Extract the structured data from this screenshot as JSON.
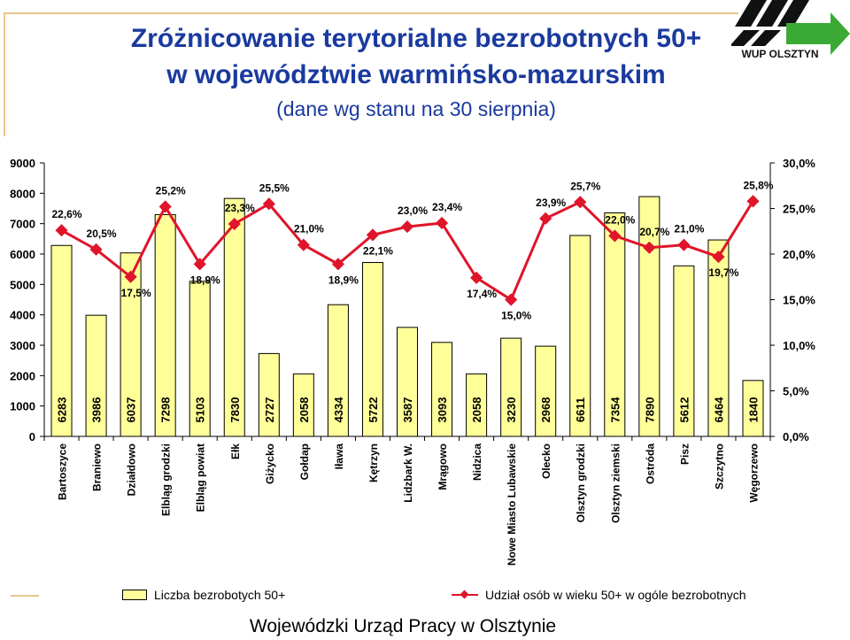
{
  "header": {
    "title_line1": "Zróżnicowanie terytorialne bezrobotnych 50+",
    "title_line2": "w województwie warmińsko-mazurskim",
    "subtitle": "(dane wg stanu na 30 sierpnia)"
  },
  "logo": {
    "text": "WUP OLSZTYN",
    "arrow_color": "#3aaa35"
  },
  "chart_data": {
    "type": "bar",
    "categories": [
      "Bartoszyce",
      "Braniewo",
      "Działdowo",
      "Elbląg grodzki",
      "Elbląg powiat",
      "Ełk",
      "Giżycko",
      "Gołdap",
      "Iława",
      "Kętrzyn",
      "Lidzbark W.",
      "Mrągowo",
      "Nidzica",
      "Nowe Miasto Lubawskie",
      "Olecko",
      "Olsztyn grodzki",
      "Olsztyn ziemski",
      "Ostróda",
      "Pisz",
      "Szczytno",
      "Węgorzewo"
    ],
    "series": [
      {
        "name": "Liczba bezrobotych 50+",
        "type": "bar",
        "axis": "left",
        "color": "#ffff99",
        "values": [
          6283,
          3986,
          6037,
          7298,
          5103,
          7830,
          2727,
          2058,
          4334,
          5722,
          3587,
          3093,
          2058,
          3230,
          2968,
          6611,
          7354,
          7890,
          5612,
          6464,
          1840
        ],
        "value_labels": [
          "6283",
          "3986",
          "6037",
          "7298",
          "5103",
          "7830",
          "2727",
          "2058",
          "4334",
          "5722",
          "3587",
          "3093",
          "2058",
          "3230",
          "2968",
          "6611",
          "7354",
          "7890",
          "5612",
          "6464",
          "1840"
        ]
      },
      {
        "name": "Udział osób w wieku 50+ w ogóle bezrobotnych",
        "type": "line",
        "axis": "right",
        "color": "#e0142a",
        "values": [
          22.6,
          20.5,
          17.5,
          25.2,
          18.9,
          23.3,
          25.5,
          21.0,
          18.9,
          22.1,
          23.0,
          23.4,
          17.4,
          15.0,
          23.9,
          25.7,
          22.0,
          20.7,
          21.0,
          19.7,
          25.8
        ],
        "value_labels": [
          "22,6%",
          "20,5%",
          "17,5%",
          "25,2%",
          "18,9%",
          "23,3%",
          "25,5%",
          "21,0%",
          "18,9%",
          "22,1%",
          "23,0%",
          "23,4%",
          "17,4%",
          "15,0%",
          "23,9%",
          "25,7%",
          "22,0%",
          "20,7%",
          "21,0%",
          "19,7%",
          "25,8%"
        ]
      }
    ],
    "y_left": {
      "min": 0,
      "max": 9000,
      "ticks": [
        "0",
        "1000",
        "2000",
        "3000",
        "4000",
        "5000",
        "6000",
        "7000",
        "8000",
        "9000"
      ]
    },
    "y_right": {
      "min": 0,
      "max": 30,
      "ticks": [
        "0,0%",
        "5,0%",
        "10,0%",
        "15,0%",
        "20,0%",
        "25,0%",
        "30,0%"
      ]
    },
    "grid": false,
    "legend_position": "bottom"
  },
  "footer": {
    "text": "Wojewódzki Urząd Pracy w Olsztynie"
  }
}
